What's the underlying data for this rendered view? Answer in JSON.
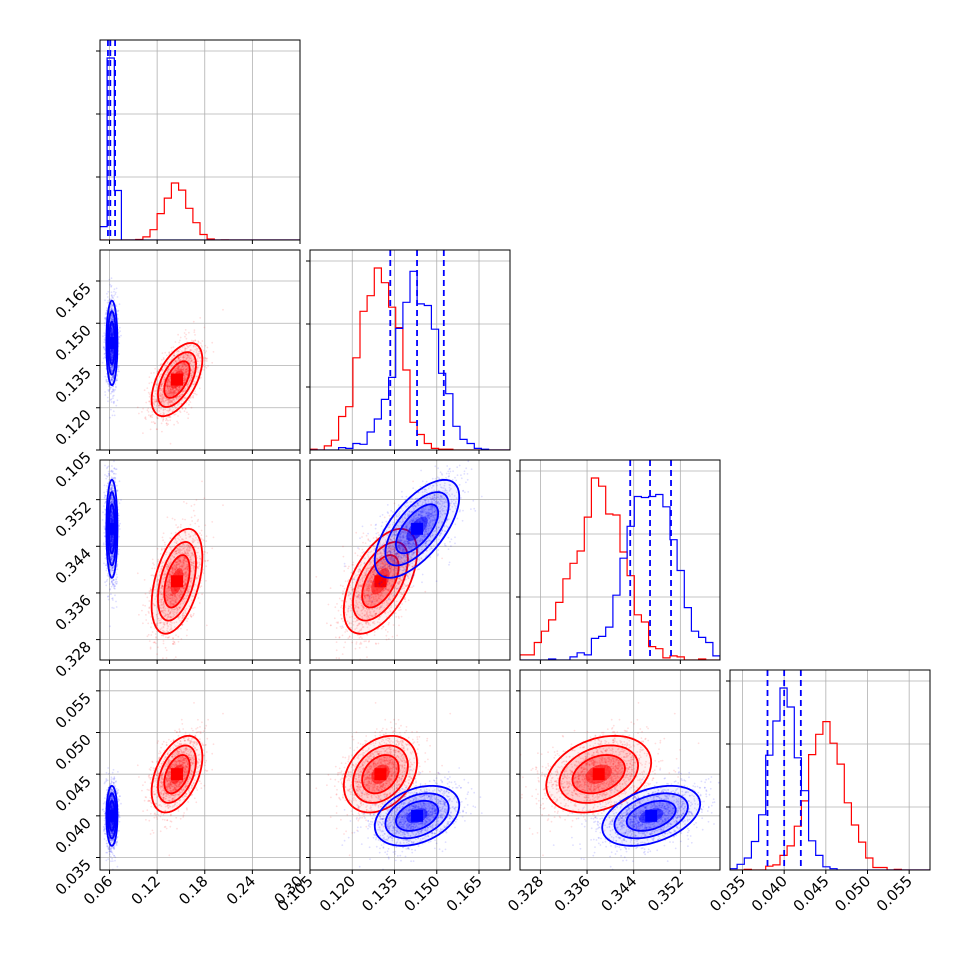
{
  "colors": {
    "series_a": "#ff0000",
    "series_b": "#0000ff",
    "grid": "#b0b0b0"
  },
  "chart_data": {
    "type": "corner",
    "grid": true,
    "parameters": [
      {
        "ticks": [
          "0.06",
          "0.12",
          "0.18",
          "0.24",
          "0.30"
        ],
        "range": [
          0.048,
          0.3
        ]
      },
      {
        "ticks": [
          "0.105",
          "0.120",
          "0.135",
          "0.150",
          "0.165"
        ],
        "range": [
          0.105,
          0.176
        ]
      },
      {
        "ticks": [
          "0.328",
          "0.336",
          "0.344",
          "0.352"
        ],
        "range": [
          0.3245,
          0.3588
        ]
      },
      {
        "ticks": [
          "0.035",
          "0.040",
          "0.045",
          "0.050",
          "0.055"
        ],
        "range": [
          0.0335,
          0.0575
        ]
      }
    ],
    "series": [
      {
        "color": "#ff0000",
        "mean": [
          0.145,
          0.13,
          0.338,
          0.045
        ],
        "sd": [
          0.016,
          0.0065,
          0.0045,
          0.0023
        ],
        "corr": [
          [
            0,
            1,
            0.55
          ],
          [
            0,
            2,
            0.45
          ],
          [
            0,
            3,
            0.45
          ],
          [
            1,
            2,
            0.55
          ],
          [
            1,
            3,
            0.3
          ],
          [
            2,
            3,
            0.3
          ]
        ]
      },
      {
        "color": "#0000ff",
        "mean": [
          0.063,
          0.143,
          0.347,
          0.04
        ],
        "sd": [
          0.0035,
          0.0075,
          0.0042,
          0.0018
        ],
        "corr": [
          [
            0,
            1,
            0.0
          ],
          [
            0,
            2,
            0.0
          ],
          [
            0,
            3,
            0.0
          ],
          [
            1,
            2,
            0.65
          ],
          [
            1,
            3,
            0.35
          ],
          [
            2,
            3,
            0.4
          ]
        ]
      }
    ],
    "quantile_lines": {
      "color": "#0000ff",
      "style": "dashed",
      "values": [
        [
          0.058,
          0.061,
          0.067
        ],
        [
          0.1335,
          0.143,
          0.1525
        ],
        [
          0.3434,
          0.3468,
          0.3504
        ],
        [
          0.038,
          0.04,
          0.042
        ]
      ]
    },
    "contour_levels_sigma": [
      0.5,
      1.0,
      1.5,
      2.0
    ]
  }
}
